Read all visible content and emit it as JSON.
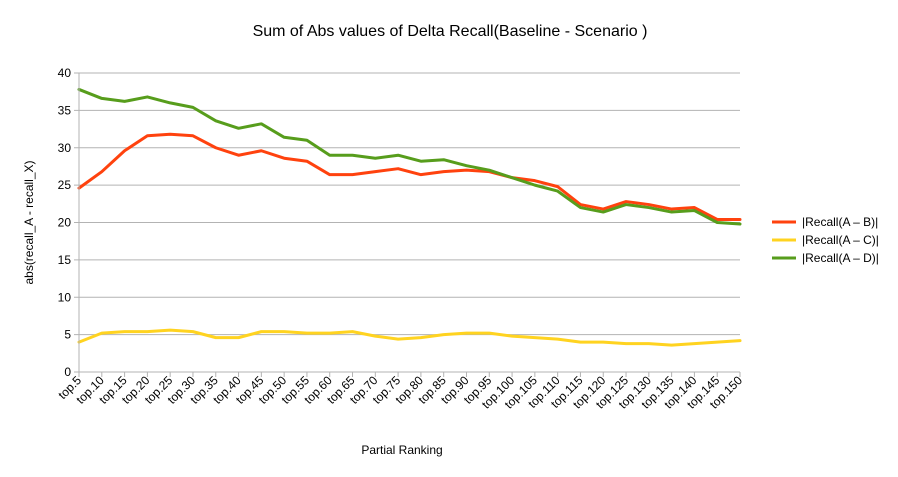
{
  "chart_data": {
    "type": "line",
    "title": "Sum of Abs values of Delta Recall(Baseline - Scenario )",
    "xlabel": "Partial Ranking",
    "ylabel": "abs(recall_A - recall_X)",
    "ylim": [
      0,
      40
    ],
    "yticks": [
      0,
      5,
      10,
      15,
      20,
      25,
      30,
      35,
      40
    ],
    "grid": true,
    "legend_position": "right",
    "categories": [
      "top.5",
      "top.10",
      "top.15",
      "top.20",
      "top.25",
      "top.30",
      "top.35",
      "top.40",
      "top.45",
      "top.50",
      "top.55",
      "top.60",
      "top.65",
      "top.70",
      "top.75",
      "top.80",
      "top.85",
      "top.90",
      "top.95",
      "top.100",
      "top.105",
      "top.110",
      "top.115",
      "top.120",
      "top.125",
      "top.130",
      "top.135",
      "top.140",
      "top.145",
      "top.150"
    ],
    "series": [
      {
        "name": "|Recall(A – B)|",
        "color": "#ff420e",
        "values": [
          24.6,
          26.8,
          29.6,
          31.6,
          31.8,
          31.6,
          30.0,
          29.0,
          29.6,
          28.6,
          28.2,
          26.4,
          26.4,
          26.8,
          27.2,
          26.4,
          26.8,
          27.0,
          26.8,
          26.0,
          25.6,
          24.8,
          22.4,
          21.8,
          22.8,
          22.4,
          21.8,
          22.0,
          20.4,
          20.4
        ]
      },
      {
        "name": "|Recall(A – C)|",
        "color": "#ffd320",
        "values": [
          4.0,
          5.2,
          5.4,
          5.4,
          5.6,
          5.4,
          4.6,
          4.6,
          5.4,
          5.4,
          5.2,
          5.2,
          5.4,
          4.8,
          4.4,
          4.6,
          5.0,
          5.2,
          5.2,
          4.8,
          4.6,
          4.4,
          4.0,
          4.0,
          3.8,
          3.8,
          3.6,
          3.8,
          4.0,
          4.2
        ]
      },
      {
        "name": "|Recall(A – D)|",
        "color": "#579d1c",
        "values": [
          37.8,
          36.6,
          36.2,
          36.8,
          36.0,
          35.4,
          33.6,
          32.6,
          33.2,
          31.4,
          31.0,
          29.0,
          29.0,
          28.6,
          29.0,
          28.2,
          28.4,
          27.6,
          27.0,
          26.0,
          25.0,
          24.2,
          22.0,
          21.4,
          22.4,
          22.0,
          21.4,
          21.6,
          20.0,
          19.8
        ]
      }
    ]
  }
}
